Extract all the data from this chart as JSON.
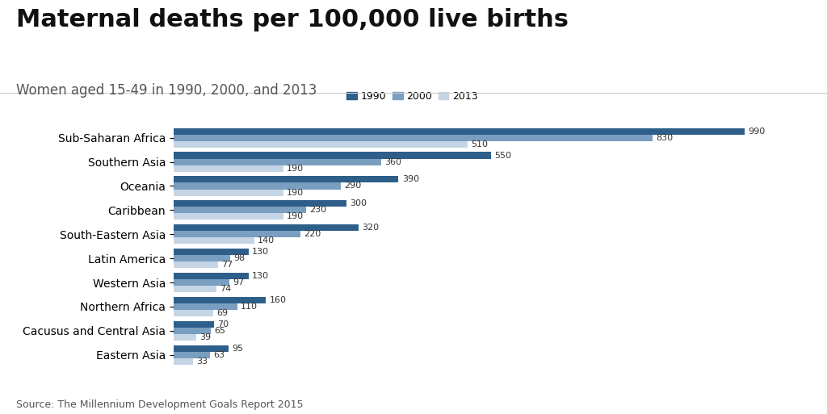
{
  "title": "Maternal deaths per 100,000 live births",
  "subtitle": "Women aged 15-49 in 1990, 2000, and 2013",
  "source": "Source: The Millennium Development Goals Report 2015",
  "categories": [
    "Sub-Saharan Africa",
    "Southern Asia",
    "Oceania",
    "Caribbean",
    "South-Eastern Asia",
    "Latin America",
    "Western Asia",
    "Northern Africa",
    "Cacusus and Central Asia",
    "Eastern Asia"
  ],
  "values_1990": [
    990,
    550,
    390,
    300,
    320,
    130,
    130,
    160,
    70,
    95
  ],
  "values_2000": [
    830,
    360,
    290,
    230,
    220,
    98,
    97,
    110,
    65,
    63
  ],
  "values_2013": [
    510,
    190,
    190,
    190,
    140,
    77,
    74,
    69,
    39,
    33
  ],
  "color_1990": "#2e5f8a",
  "color_2000": "#7a9ec0",
  "color_2013": "#c5d5e5",
  "legend_labels": [
    "1990",
    "2000",
    "2013"
  ],
  "bar_height": 0.27,
  "background_color": "#ffffff",
  "title_fontsize": 22,
  "subtitle_fontsize": 12,
  "label_fontsize": 8,
  "tick_fontsize": 10,
  "source_fontsize": 9
}
